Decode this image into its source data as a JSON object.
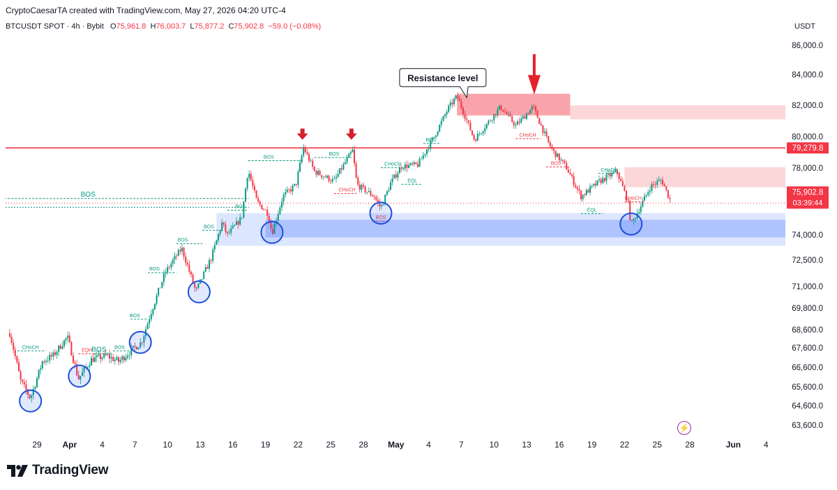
{
  "header": {
    "created_by": "CryptoCaesarTA created with TradingView.com, May 27, 2026 04:20 UTC-4"
  },
  "symbol": {
    "name": "BTCUSDT SPOT · 4h · Bybit",
    "open_label": "O",
    "open": "75,961.8",
    "high_label": "H",
    "high": "76,003.7",
    "low_label": "L",
    "low": "75,877.2",
    "close_label": "C",
    "close": "75,902.8",
    "change": "−59.0 (−0.08%)"
  },
  "currency": "USDT",
  "branding": {
    "logo_text": "TradingView"
  },
  "colors": {
    "up": "#089981",
    "down": "#f23645",
    "demand": "#2962ff",
    "supply": "#f23645"
  },
  "chart_data": {
    "type": "candlestick",
    "y_ticks": [
      {
        "v": 86000,
        "label": "86,000.0"
      },
      {
        "v": 84000,
        "label": "84,000.0"
      },
      {
        "v": 82000,
        "label": "82,000.0"
      },
      {
        "v": 80000,
        "label": "80,000.0"
      },
      {
        "v": 78000,
        "label": "78,000.0"
      },
      {
        "v": 74000,
        "label": "74,000.0"
      },
      {
        "v": 72500,
        "label": "72,500.0"
      },
      {
        "v": 71000,
        "label": "71,000.0"
      },
      {
        "v": 69800,
        "label": "69,800.0"
      },
      {
        "v": 68600,
        "label": "68,600.0"
      },
      {
        "v": 67600,
        "label": "67,600.0"
      },
      {
        "v": 66600,
        "label": "66,600.0"
      },
      {
        "v": 65600,
        "label": "65,600.0"
      },
      {
        "v": 64600,
        "label": "64,600.0"
      },
      {
        "v": 63600,
        "label": "63,600.0"
      }
    ],
    "x_ticks": [
      {
        "day": 0,
        "label": "29"
      },
      {
        "day": 3,
        "label": "Apr"
      },
      {
        "day": 6,
        "label": "4"
      },
      {
        "day": 9,
        "label": "7"
      },
      {
        "day": 12,
        "label": "10"
      },
      {
        "day": 15,
        "label": "13"
      },
      {
        "day": 18,
        "label": "16"
      },
      {
        "day": 21,
        "label": "19"
      },
      {
        "day": 24,
        "label": "22"
      },
      {
        "day": 27,
        "label": "25"
      },
      {
        "day": 30,
        "label": "28"
      },
      {
        "day": 33,
        "label": "May"
      },
      {
        "day": 36,
        "label": "4"
      },
      {
        "day": 39,
        "label": "7"
      },
      {
        "day": 42,
        "label": "10"
      },
      {
        "day": 45,
        "label": "13"
      },
      {
        "day": 48,
        "label": "16"
      },
      {
        "day": 51,
        "label": "19"
      },
      {
        "day": 54,
        "label": "22"
      },
      {
        "day": 57,
        "label": "25"
      },
      {
        "day": 60,
        "label": "28"
      },
      {
        "day": 64,
        "label": "Jun"
      },
      {
        "day": 67,
        "label": "4"
      }
    ],
    "key_points": [
      [
        -2.5,
        68400
      ],
      [
        -1.5,
        65900
      ],
      [
        -0.6,
        65000
      ],
      [
        0.5,
        66900
      ],
      [
        1.5,
        67200
      ],
      [
        2.8,
        68200
      ],
      [
        3.8,
        66000
      ],
      [
        5,
        67000
      ],
      [
        6.4,
        67200
      ],
      [
        7.5,
        66900
      ],
      [
        9.6,
        67900
      ],
      [
        10.5,
        69600
      ],
      [
        11.8,
        71800
      ],
      [
        13.3,
        73200
      ],
      [
        14.6,
        70700
      ],
      [
        16,
        72600
      ],
      [
        17,
        74700
      ],
      [
        17.5,
        74000
      ],
      [
        18.8,
        75000
      ],
      [
        19.4,
        77900
      ],
      [
        20.2,
        76000
      ],
      [
        21.2,
        75300
      ],
      [
        21.6,
        74100
      ],
      [
        22.6,
        76300
      ],
      [
        23.8,
        77000
      ],
      [
        24.5,
        79300
      ],
      [
        25.5,
        77800
      ],
      [
        27.3,
        77200
      ],
      [
        29,
        79100
      ],
      [
        29.4,
        77000
      ],
      [
        31,
        76300
      ],
      [
        31.6,
        75600
      ],
      [
        32.5,
        77100
      ],
      [
        33.5,
        78100
      ],
      [
        35,
        78200
      ],
      [
        36.5,
        80000
      ],
      [
        37.8,
        81800
      ],
      [
        38.6,
        82600
      ],
      [
        40.2,
        79800
      ],
      [
        42.6,
        81900
      ],
      [
        44,
        80700
      ],
      [
        45.6,
        81900
      ],
      [
        47,
        79600
      ],
      [
        47.4,
        79100
      ],
      [
        48.6,
        78100
      ],
      [
        50,
        76300
      ],
      [
        51.7,
        77200
      ],
      [
        53.3,
        77800
      ],
      [
        54.3,
        76000
      ],
      [
        54.6,
        74600
      ],
      [
        56.4,
        76900
      ],
      [
        57.4,
        77300
      ],
      [
        58.3,
        75900
      ]
    ],
    "last_price": {
      "price": 75902.8,
      "label": "75,902.8",
      "countdown": "03:39:44"
    },
    "resistance_line": {
      "price": 79279.8,
      "label": "79,279.8"
    },
    "old_high_line_price": 75650,
    "supply_zones": [
      {
        "x1": 38.6,
        "x2": 49,
        "top": 82750,
        "bottom": 81350
      },
      {
        "x1": 49,
        "x2": 69,
        "top": 82000,
        "bottom": 81100
      },
      {
        "x1": 54,
        "x2": 69,
        "top": 78050,
        "bottom": 76850
      }
    ],
    "demand_zones": [
      {
        "x1": 16.5,
        "x2": 69,
        "top": 75300,
        "bottom": 73350
      },
      {
        "x1": 21,
        "x2": 69,
        "top": 74900,
        "bottom": 73850
      }
    ],
    "circles": [
      {
        "day": -0.6,
        "price": 64850
      },
      {
        "day": 3.9,
        "price": 66150
      },
      {
        "day": 9.5,
        "price": 67900
      },
      {
        "day": 14.9,
        "price": 70700
      },
      {
        "day": 21.6,
        "price": 74150
      },
      {
        "day": 31.6,
        "price": 75300
      },
      {
        "day": 54.6,
        "price": 74650
      }
    ],
    "down_arrows": [
      {
        "day": 24.4,
        "price": 79800,
        "size": "small"
      },
      {
        "day": 28.9,
        "price": 79800,
        "size": "small"
      },
      {
        "day": 45.7,
        "price": 82700,
        "size": "large"
      }
    ],
    "callout": {
      "text": "Resistance level",
      "day": 37.3,
      "price": 83800,
      "pointer_day": 39.5,
      "pointer_price": 82500
    },
    "structure_labels": [
      {
        "text": "BOS",
        "day": 4.7,
        "price": 76300,
        "type": "bos",
        "x1": -3,
        "x2": 19.5
      },
      {
        "text": "CHoCH",
        "day": -0.6,
        "price": 67550,
        "type": "bos",
        "x1": -1.8,
        "x2": 0.8
      },
      {
        "text": "EQH",
        "day": 4.6,
        "price": 67400,
        "type": "choch",
        "x1": 3.8,
        "x2": 5.3
      },
      {
        "text": "BOS",
        "day": 5.7,
        "price": 67400,
        "type": "bos",
        "x1": 5.3,
        "x2": 6.8
      },
      {
        "text": "BOS",
        "day": 7.6,
        "price": 67550,
        "type": "bos",
        "x1": 7,
        "x2": 8.6
      },
      {
        "text": "BOS",
        "day": 9,
        "price": 69300,
        "type": "bos",
        "x1": 8.6,
        "x2": 10.2
      },
      {
        "text": "BOS",
        "day": 10.8,
        "price": 71900,
        "type": "bos",
        "x1": 10.2,
        "x2": 12.8
      },
      {
        "text": "BOS",
        "day": 13.4,
        "price": 73600,
        "type": "bos",
        "x1": 12.8,
        "x2": 15.2
      },
      {
        "text": "BOS",
        "day": 15.8,
        "price": 74400,
        "type": "bos",
        "x1": 15.2,
        "x2": 17
      },
      {
        "text": "BOS",
        "day": 18.7,
        "price": 75600,
        "type": "bos",
        "x1": 17.5,
        "x2": 19.3
      },
      {
        "text": "BOS",
        "day": 21.3,
        "price": 78600,
        "type": "bos",
        "x1": 19.4,
        "x2": 24.5
      },
      {
        "text": "BOS",
        "day": 27.3,
        "price": 78800,
        "type": "bos",
        "x1": 25.5,
        "x2": 29
      },
      {
        "text": "CHoCH",
        "day": 28.5,
        "price": 76600,
        "type": "choch",
        "x1": 27.3,
        "x2": 29.4
      },
      {
        "text": "BOS",
        "day": 31.6,
        "price": 74950,
        "type": "choch",
        "x1": 30.8,
        "x2": 32.3
      },
      {
        "text": "CHoCH",
        "day": 32.7,
        "price": 78150,
        "type": "bos",
        "x1": 31.6,
        "x2": 33.8
      },
      {
        "text": "EQL",
        "day": 34.5,
        "price": 77150,
        "type": "bos",
        "x1": 33.5,
        "x2": 35.3
      },
      {
        "text": "BOS",
        "day": 36.2,
        "price": 79700,
        "type": "bos",
        "x1": 35.5,
        "x2": 37
      },
      {
        "text": "CHoCH",
        "day": 45.1,
        "price": 80000,
        "type": "choch",
        "x1": 44,
        "x2": 46.3
      },
      {
        "text": "BOS",
        "day": 47.7,
        "price": 78200,
        "type": "choch",
        "x1": 46.8,
        "x2": 49
      },
      {
        "text": "CHoCH",
        "day": 52.6,
        "price": 77800,
        "type": "bos",
        "x1": 51.6,
        "x2": 53.6
      },
      {
        "text": "EQL",
        "day": 51,
        "price": 75400,
        "type": "bos",
        "x1": 50,
        "x2": 52
      },
      {
        "text": "CHoCH",
        "day": 54.8,
        "price": 76100,
        "type": "choch",
        "x1": 54,
        "x2": 55.8
      }
    ]
  }
}
